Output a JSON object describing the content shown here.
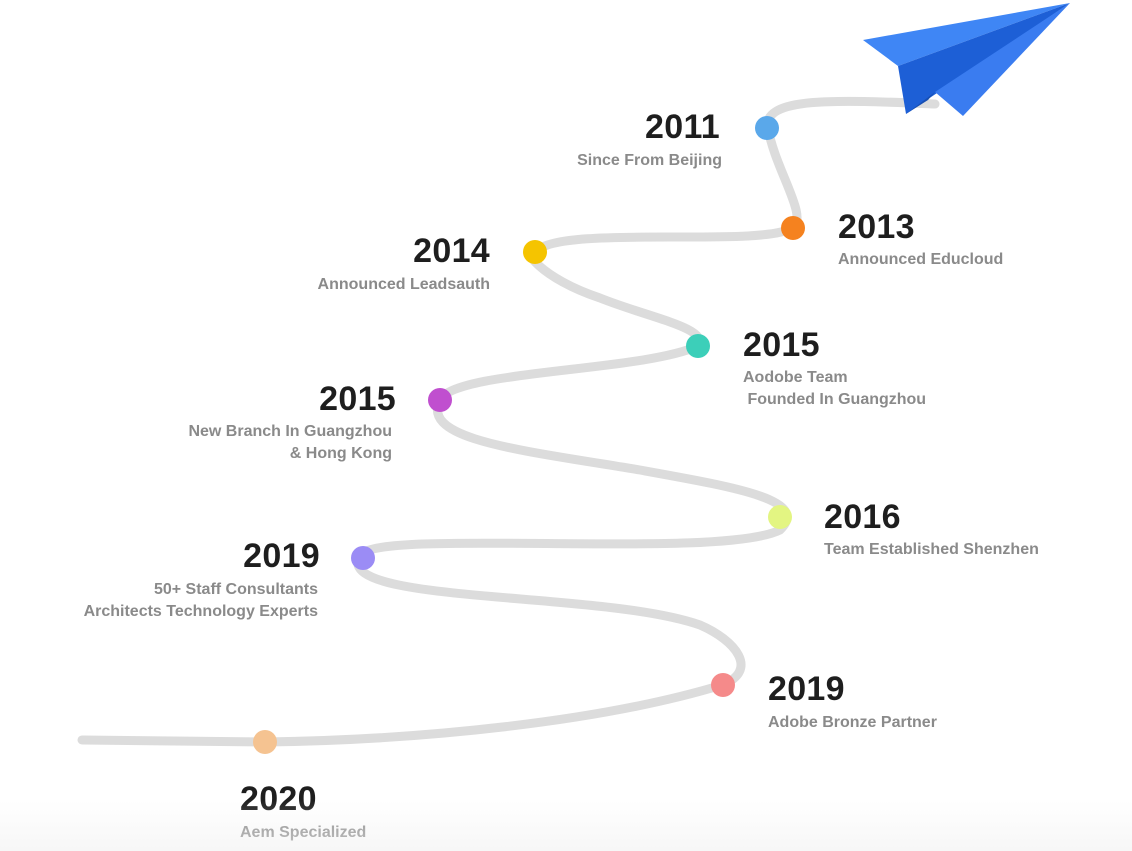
{
  "colors": {
    "path": "#dcdcdc",
    "year_text": "#1e1e1e",
    "desc_text": "#8a8a8a",
    "plane_light": "#3f86f5",
    "plane_dark": "#1d5fd6",
    "plane_mid": "#2b6fe6"
  },
  "icons": {
    "plane": "paper-plane-icon"
  },
  "milestones": [
    {
      "year": "2011",
      "desc": "Since From Beijing",
      "dot_color": "#5aa8ea"
    },
    {
      "year": "2013",
      "desc": "Announced Educloud",
      "dot_color": "#f5821f"
    },
    {
      "year": "2014",
      "desc": "Announced Leadsauth",
      "dot_color": "#f5c400"
    },
    {
      "year": "2015",
      "desc": "Aodobe Team\n Founded In Guangzhou",
      "dot_color": "#3ccfb9"
    },
    {
      "year": "2015",
      "desc": "New Branch In Guangzhou\n& Hong Kong",
      "dot_color": "#c04fcf"
    },
    {
      "year": "2016",
      "desc": "Team Established Shenzhen",
      "dot_color": "#e3f582"
    },
    {
      "year": "2019",
      "desc": "50+ Staff Consultants\nArchitects Technology Experts",
      "dot_color": "#9b8cf5"
    },
    {
      "year": "2019",
      "desc": "Adobe Bronze Partner",
      "dot_color": "#f58a8a"
    },
    {
      "year": "2020",
      "desc": "Aem Specialized",
      "dot_color": "#f5c391"
    }
  ]
}
